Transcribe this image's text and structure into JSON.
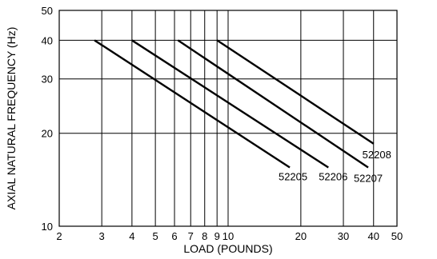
{
  "chart_data": {
    "type": "line",
    "title": "",
    "xlabel": "LOAD (POUNDS)",
    "ylabel": "AXIAL NATURAL FREQUENCY (Hz)",
    "x_scale": "log",
    "y_scale": "log",
    "xlim": [
      2,
      50
    ],
    "ylim": [
      10,
      50
    ],
    "grid": true,
    "x_ticks": [
      2,
      3,
      4,
      5,
      6,
      7,
      8,
      9,
      10,
      20,
      30,
      40,
      50
    ],
    "x_tick_labels": [
      "2",
      "3",
      "4",
      "5",
      "6",
      "7",
      "8",
      "9",
      "10",
      "20",
      "30",
      "40",
      "50"
    ],
    "y_ticks": [
      10,
      20,
      30,
      40,
      50
    ],
    "y_tick_labels": [
      "10",
      "20",
      "30",
      "40",
      "50"
    ],
    "series": [
      {
        "name": "52205",
        "x": [
          2.8,
          18
        ],
        "y": [
          40,
          15.5
        ]
      },
      {
        "name": "52206",
        "x": [
          4.0,
          26
        ],
        "y": [
          40,
          15.5
        ]
      },
      {
        "name": "52207",
        "x": [
          6.2,
          38
        ],
        "y": [
          40,
          15.5
        ]
      },
      {
        "name": "52208",
        "x": [
          9.0,
          40
        ],
        "y": [
          40,
          18.5
        ]
      }
    ]
  }
}
